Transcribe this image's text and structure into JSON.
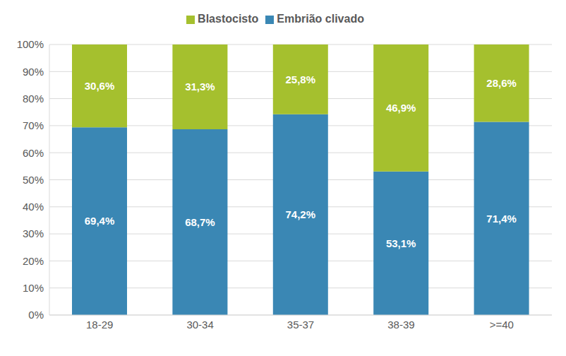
{
  "chart_data": {
    "type": "bar",
    "stacked": true,
    "categories": [
      "18-29",
      "30-34",
      "35-37",
      "38-39",
      ">=40"
    ],
    "series": [
      {
        "name": "Embrião clivado",
        "color": "#3A87B4",
        "values": [
          69.4,
          68.7,
          74.2,
          53.1,
          71.4
        ],
        "value_labels": [
          "69,4%",
          "68,7%",
          "74,2%",
          "53,1%",
          "71,4%"
        ]
      },
      {
        "name": "Blastocisto",
        "color": "#A5C02E",
        "values": [
          30.6,
          31.3,
          25.8,
          46.9,
          28.6
        ],
        "value_labels": [
          "30,6%",
          "31,3%",
          "25,8%",
          "46,9%",
          "28,6%"
        ]
      }
    ],
    "ylim": [
      0,
      100
    ],
    "yticks": [
      {
        "value": 0,
        "label": "0%"
      },
      {
        "value": 10,
        "label": "10%"
      },
      {
        "value": 20,
        "label": "20%"
      },
      {
        "value": 30,
        "label": "30%"
      },
      {
        "value": 40,
        "label": "40%"
      },
      {
        "value": 50,
        "label": "50%"
      },
      {
        "value": 60,
        "label": "60%"
      },
      {
        "value": 70,
        "label": "70%"
      },
      {
        "value": 80,
        "label": "80%"
      },
      {
        "value": 90,
        "label": "90%"
      },
      {
        "value": 100,
        "label": "100%"
      }
    ],
    "grid": true,
    "legend": "top",
    "data_labels": true
  }
}
